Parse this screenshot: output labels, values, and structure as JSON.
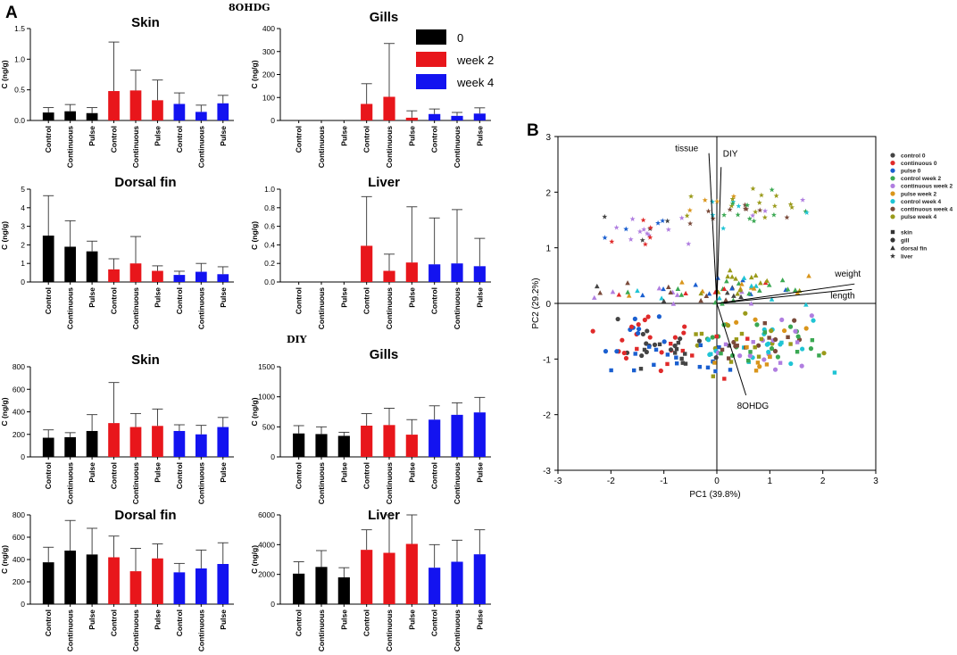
{
  "figure": {
    "panel_a_letter": "A",
    "panel_b_letter": "B",
    "section_top": "8OHDG",
    "section_bottom": "DIY"
  },
  "legend": {
    "entries": [
      {
        "label": "0",
        "color": "#000000"
      },
      {
        "label": "week 2",
        "color": "#e8161b"
      },
      {
        "label": "week 4",
        "color": "#1313f0"
      }
    ]
  },
  "chart_data": [
    {
      "id": "skin_8ohdg",
      "type": "bar",
      "title": "Skin",
      "ylabel": "C (ng/g)",
      "ylim": [
        0,
        1.5
      ],
      "yticks": [
        0.0,
        0.5,
        1.0,
        1.5
      ],
      "ytick_labels": [
        "0.0",
        "0.5",
        "1.0",
        "1.5"
      ],
      "categories": [
        "Control",
        "Continuous",
        "Pulse",
        "Control",
        "Continuous",
        "Pulse",
        "Control",
        "Continuous",
        "Pulse"
      ],
      "groups": [
        "0",
        "0",
        "0",
        "week 2",
        "week 2",
        "week 2",
        "week 4",
        "week 4",
        "week 4"
      ],
      "values": [
        0.13,
        0.15,
        0.12,
        0.48,
        0.49,
        0.33,
        0.27,
        0.14,
        0.28
      ],
      "errors": [
        0.08,
        0.11,
        0.09,
        0.8,
        0.33,
        0.33,
        0.18,
        0.11,
        0.13
      ]
    },
    {
      "id": "gills_8ohdg",
      "type": "bar",
      "title": "Gills",
      "ylabel": "C (ng/g)",
      "ylim": [
        0,
        400
      ],
      "yticks": [
        0,
        100,
        200,
        300,
        400
      ],
      "ytick_labels": [
        "0",
        "100",
        "200",
        "300",
        "400"
      ],
      "categories": [
        "Control",
        "Continuous",
        "Pulse",
        "Control",
        "Continuous",
        "Pulse",
        "Control",
        "Continuous",
        "Pulse"
      ],
      "groups": [
        "0",
        "0",
        "0",
        "week 2",
        "week 2",
        "week 2",
        "week 4",
        "week 4",
        "week 4"
      ],
      "values": [
        0,
        0,
        0,
        72,
        103,
        12,
        28,
        20,
        30
      ],
      "errors": [
        0,
        0,
        0,
        88,
        232,
        30,
        22,
        15,
        25
      ]
    },
    {
      "id": "dorsal_8ohdg",
      "type": "bar",
      "title": "Dorsal fin",
      "ylabel": "C (ng/g)",
      "ylim": [
        0,
        5
      ],
      "yticks": [
        0,
        1,
        2,
        3,
        4,
        5
      ],
      "ytick_labels": [
        "0",
        "1",
        "2",
        "3",
        "4",
        "5"
      ],
      "categories": [
        "Control",
        "Continuous",
        "Pulse",
        "Control",
        "Continuous",
        "Pulse",
        "Control",
        "Continuous",
        "Pulse"
      ],
      "groups": [
        "0",
        "0",
        "0",
        "week 2",
        "week 2",
        "week 2",
        "week 4",
        "week 4",
        "week 4"
      ],
      "values": [
        2.5,
        1.9,
        1.65,
        0.68,
        1.0,
        0.6,
        0.38,
        0.55,
        0.42
      ],
      "errors": [
        2.15,
        1.4,
        0.55,
        0.57,
        1.45,
        0.27,
        0.2,
        0.45,
        0.4
      ]
    },
    {
      "id": "liver_8ohdg",
      "type": "bar",
      "title": "Liver",
      "ylabel": "C (ng/g)",
      "ylim": [
        0,
        1.0
      ],
      "yticks": [
        0.0,
        0.2,
        0.4,
        0.6,
        0.8,
        1.0
      ],
      "ytick_labels": [
        "0.0",
        "0.2",
        "0.4",
        "0.6",
        "0.8",
        "1.0"
      ],
      "categories": [
        "Control",
        "Continuous",
        "Pulse",
        "Control",
        "Continuous",
        "Pulse",
        "Control",
        "Continuous",
        "Pulse"
      ],
      "groups": [
        "0",
        "0",
        "0",
        "week 2",
        "week 2",
        "week 2",
        "week 4",
        "week 4",
        "week 4"
      ],
      "values": [
        0,
        0,
        0,
        0.39,
        0.12,
        0.21,
        0.19,
        0.2,
        0.17
      ],
      "errors": [
        0,
        0,
        0,
        0.53,
        0.18,
        0.6,
        0.5,
        0.58,
        0.3
      ]
    },
    {
      "id": "skin_diy",
      "type": "bar",
      "title": "Skin",
      "ylabel": "C (ng/g)",
      "ylim": [
        0,
        800
      ],
      "yticks": [
        0,
        200,
        400,
        600,
        800
      ],
      "ytick_labels": [
        "0",
        "200",
        "400",
        "600",
        "800"
      ],
      "categories": [
        "Control",
        "Continuous",
        "Pulse",
        "Control",
        "Continuous",
        "Pulse",
        "Control",
        "Continuous",
        "Pulse"
      ],
      "groups": [
        "0",
        "0",
        "0",
        "week 2",
        "week 2",
        "week 2",
        "week 4",
        "week 4",
        "week 4"
      ],
      "values": [
        170,
        175,
        230,
        300,
        265,
        275,
        230,
        200,
        265
      ],
      "errors": [
        70,
        40,
        145,
        360,
        120,
        150,
        55,
        80,
        85
      ]
    },
    {
      "id": "gills_diy",
      "type": "bar",
      "title": "Gills",
      "ylabel": "C (ng/g)",
      "ylim": [
        0,
        1500
      ],
      "yticks": [
        0,
        500,
        1000,
        1500
      ],
      "ytick_labels": [
        "0",
        "500",
        "1000",
        "1500"
      ],
      "categories": [
        "Control",
        "Continuous",
        "Pulse",
        "Control",
        "Continuous",
        "Pulse",
        "Control",
        "Continuous",
        "Pulse"
      ],
      "groups": [
        "0",
        "0",
        "0",
        "week 2",
        "week 2",
        "week 2",
        "week 4",
        "week 4",
        "week 4"
      ],
      "values": [
        390,
        380,
        350,
        520,
        530,
        370,
        620,
        700,
        740
      ],
      "errors": [
        130,
        120,
        60,
        200,
        280,
        250,
        230,
        200,
        250
      ]
    },
    {
      "id": "dorsal_diy",
      "type": "bar",
      "title": "Dorsal fin",
      "ylabel": "C (ng/g)",
      "ylim": [
        0,
        800
      ],
      "yticks": [
        0,
        200,
        400,
        600,
        800
      ],
      "ytick_labels": [
        "0",
        "200",
        "400",
        "600",
        "800"
      ],
      "categories": [
        "Control",
        "Continuous",
        "Pulse",
        "Control",
        "Continuous",
        "Pulse",
        "Control",
        "Continuous",
        "Pulse"
      ],
      "groups": [
        "0",
        "0",
        "0",
        "week 2",
        "week 2",
        "week 2",
        "week 4",
        "week 4",
        "week 4"
      ],
      "values": [
        375,
        480,
        445,
        420,
        295,
        410,
        285,
        320,
        360
      ],
      "errors": [
        135,
        270,
        235,
        190,
        205,
        130,
        80,
        165,
        190
      ]
    },
    {
      "id": "liver_diy",
      "type": "bar",
      "title": "Liver",
      "ylabel": "C (ng/g)",
      "ylim": [
        0,
        6000
      ],
      "yticks": [
        0,
        2000,
        4000,
        6000
      ],
      "ytick_labels": [
        "0",
        "2000",
        "4000",
        "6000"
      ],
      "categories": [
        "Control",
        "Continuous",
        "Pulse",
        "Control",
        "Continuous",
        "Pulse",
        "Control",
        "Continuous",
        "Pulse"
      ],
      "groups": [
        "0",
        "0",
        "0",
        "week 2",
        "week 2",
        "week 2",
        "week 4",
        "week 4",
        "week 4"
      ],
      "values": [
        2050,
        2500,
        1800,
        3650,
        3450,
        4050,
        2450,
        2850,
        3350
      ],
      "errors": [
        800,
        1100,
        650,
        1350,
        2550,
        1950,
        1550,
        1450,
        1650
      ]
    },
    {
      "id": "pca",
      "type": "scatter",
      "subtype": "biplot",
      "xlabel": "PC1 (39.8%)",
      "ylabel": "PC2 (29.2%)",
      "xlim": [
        -3,
        3
      ],
      "ylim": [
        -3,
        3
      ],
      "xticks": [
        -3,
        -2,
        -1,
        0,
        1,
        2,
        3
      ],
      "yticks": [
        -3,
        -2,
        -1,
        0,
        1,
        2,
        3
      ],
      "groups": [
        {
          "label": "control 0",
          "color": "#444444"
        },
        {
          "label": "continuous 0",
          "color": "#e02a2a"
        },
        {
          "label": "pulse 0",
          "color": "#1a5fd0"
        },
        {
          "label": "control week 2",
          "color": "#3aa852"
        },
        {
          "label": "continuous week 2",
          "color": "#b07ee0"
        },
        {
          "label": "pulse week 2",
          "color": "#d9951b"
        },
        {
          "label": "control week 4",
          "color": "#1fc4d4"
        },
        {
          "label": "continuous week 4",
          "color": "#7a4a3a"
        },
        {
          "label": "pulse week 4",
          "color": "#9a9a1a"
        }
      ],
      "tissues": [
        {
          "label": "skin",
          "marker": "square"
        },
        {
          "label": "gill",
          "marker": "circle"
        },
        {
          "label": "dorsal fin",
          "marker": "triangle"
        },
        {
          "label": "liver",
          "marker": "star"
        }
      ],
      "vectors": [
        {
          "label": "tissue",
          "x": -0.15,
          "y": 2.7
        },
        {
          "label": "DIY",
          "x": 0.08,
          "y": 2.45
        },
        {
          "label": "weight",
          "x": 2.6,
          "y": 0.35
        },
        {
          "label": "length",
          "x": 2.55,
          "y": 0.25
        },
        {
          "label": "8OHDG",
          "x": 0.55,
          "y": -1.65
        }
      ],
      "clusters": [
        {
          "tissue": "star",
          "cx": -1.5,
          "cy": 1.35,
          "sx": 0.45,
          "sy": 0.18,
          "n": 22,
          "groups": [
            0,
            1,
            2,
            4
          ]
        },
        {
          "tissue": "star",
          "cx": 0.55,
          "cy": 1.7,
          "sx": 0.6,
          "sy": 0.15,
          "n": 45,
          "groups": [
            3,
            4,
            5,
            6,
            7,
            8
          ]
        },
        {
          "tissue": "triangle",
          "cx": -0.3,
          "cy": 0.2,
          "sx": 0.9,
          "sy": 0.12,
          "n": 55,
          "groups": [
            0,
            1,
            2,
            3,
            4,
            5,
            6,
            7,
            8
          ]
        },
        {
          "tissue": "triangle",
          "cx": 0.9,
          "cy": 0.3,
          "sx": 0.5,
          "sy": 0.15,
          "n": 25,
          "groups": [
            3,
            5,
            6,
            8
          ]
        },
        {
          "tissue": "circle",
          "cx": -1.3,
          "cy": -0.65,
          "sx": 0.5,
          "sy": 0.22,
          "n": 40,
          "groups": [
            0,
            1,
            2
          ]
        },
        {
          "tissue": "circle",
          "cx": 0.9,
          "cy": -0.75,
          "sx": 0.7,
          "sy": 0.25,
          "n": 60,
          "groups": [
            3,
            4,
            5,
            6,
            7,
            8
          ]
        },
        {
          "tissue": "square",
          "cx": -0.9,
          "cy": -0.95,
          "sx": 0.6,
          "sy": 0.2,
          "n": 35,
          "groups": [
            0,
            1,
            2
          ]
        },
        {
          "tissue": "square",
          "cx": 0.6,
          "cy": -0.85,
          "sx": 0.6,
          "sy": 0.22,
          "n": 40,
          "groups": [
            3,
            4,
            5,
            6,
            7,
            8
          ]
        }
      ]
    }
  ]
}
